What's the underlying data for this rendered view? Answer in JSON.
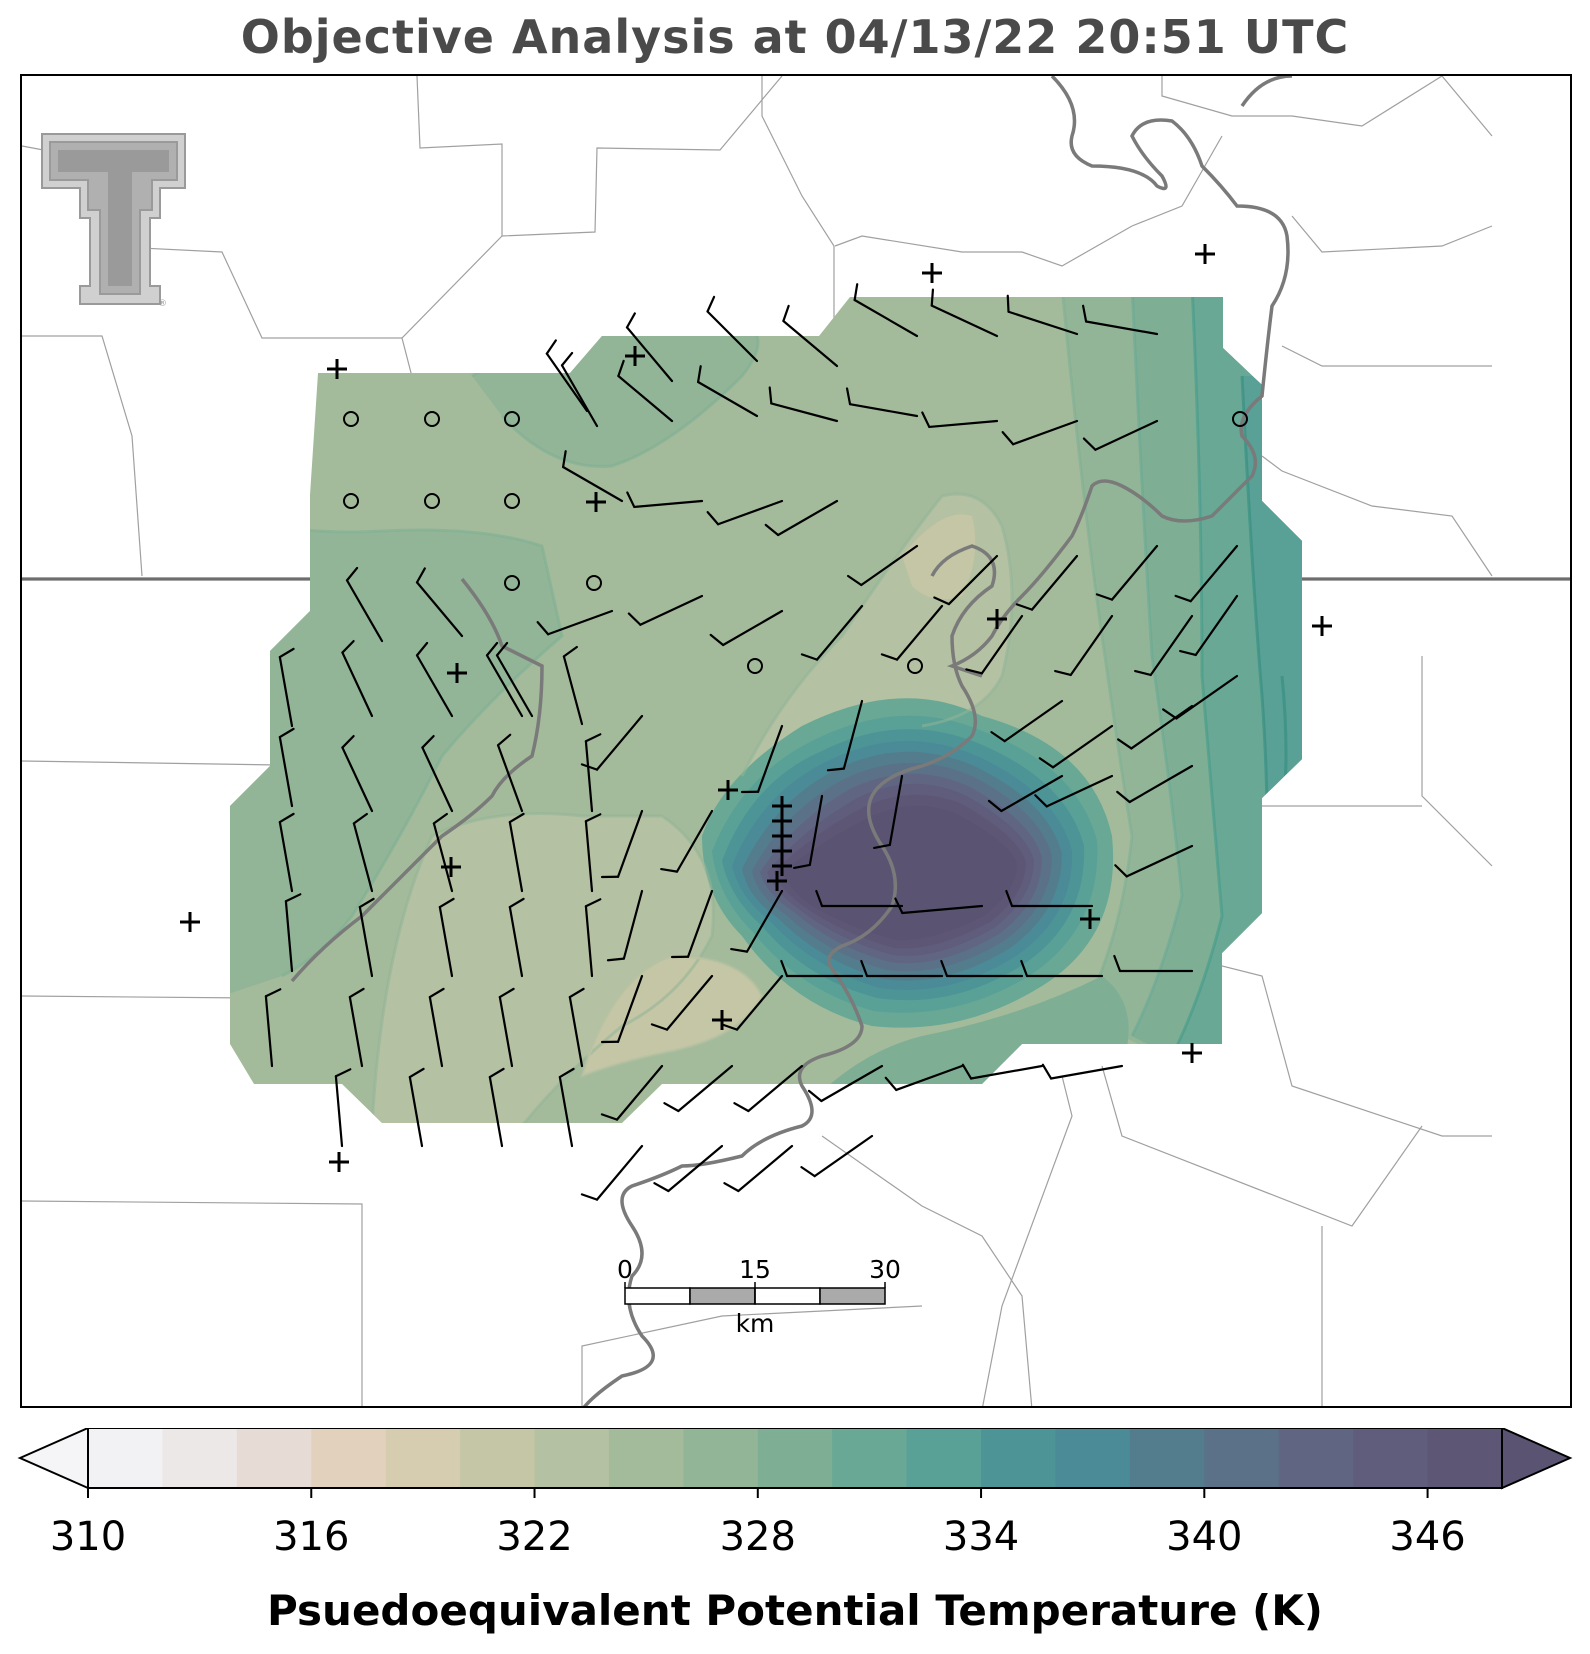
{
  "title": "Objective Analysis at 04/13/22 20:51 UTC",
  "logo": {
    "name": "texas-tech-double-t-logo",
    "mark": "®"
  },
  "scale_bar": {
    "ticks": [
      "0",
      "15",
      "30"
    ],
    "unit": "km"
  },
  "colorbar": {
    "label": "Psuedoequivalent Potential Temperature (K)",
    "ticks": [
      "310",
      "316",
      "322",
      "328",
      "334",
      "340",
      "346"
    ],
    "min": 310,
    "max": 350,
    "step": 2,
    "colors": [
      "#f2f1f4",
      "#ece8e8",
      "#e6dcd5",
      "#e2d2bd",
      "#d6ccb0",
      "#c4c6a6",
      "#b4c1a2",
      "#a3bb9b",
      "#92b597",
      "#7eaf94",
      "#68a895",
      "#59a096",
      "#4d9497",
      "#4b8a97",
      "#537d8d",
      "#5b7188",
      "#606682",
      "#5f5d7b",
      "#5d5675"
    ],
    "under_color": "#f5f4f7",
    "over_color": "#5a5472"
  },
  "analysis": {
    "field": "theta_e",
    "units": "K",
    "background_level": 324,
    "regional_pattern": {
      "west": 325,
      "center": 322,
      "southwest_tongue": 320,
      "east_edge": 333,
      "southeast": 331,
      "maximum_core": 348
    },
    "surface_obs": {
      "plus_markers": 22,
      "circle_markers": 11
    }
  }
}
